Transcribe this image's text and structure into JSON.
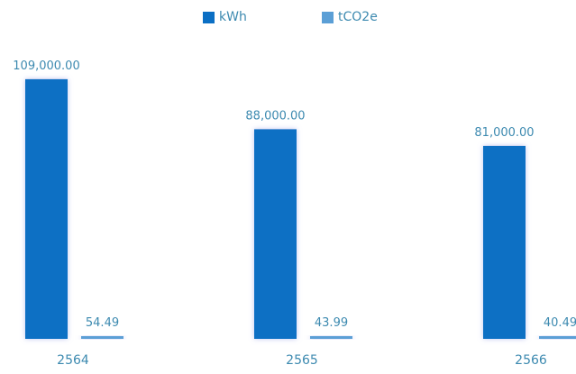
{
  "chart_data": {
    "type": "bar",
    "categories": [
      "2564",
      "2565",
      "2566"
    ],
    "series": [
      {
        "name": "kWh",
        "values": [
          109000,
          88000,
          81000
        ],
        "labels": [
          "109,000.00",
          "88,000.00",
          "81,000.00"
        ],
        "color": "#0b6fc4"
      },
      {
        "name": "tCO2e",
        "values": [
          54.49,
          43.99,
          40.49
        ],
        "labels": [
          "54.49",
          "43.99",
          "40.49"
        ],
        "color": "#5b9fd6"
      }
    ],
    "ylim": [
      0,
      115000
    ],
    "grid": false,
    "legend_position": "top-center",
    "label_color": "#3d8ab0"
  }
}
